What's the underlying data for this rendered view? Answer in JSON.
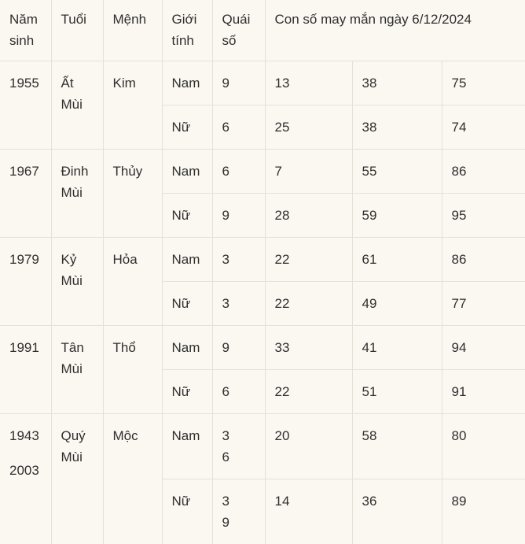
{
  "page": {
    "colors": {
      "background": "#fbf8f2",
      "grid_line": "#e3e1dc",
      "text": "#2f2f2f"
    }
  },
  "table": {
    "columns": [
      "Năm sinh",
      "Tuổi",
      "Mệnh",
      "Giới tính",
      "Quái số"
    ],
    "lucky_header": "Con số may mắn ngày 6/12/2024",
    "groups": [
      {
        "years": [
          "1955"
        ],
        "zodiac": "Ất Mùi",
        "element": "Kim",
        "rows": [
          {
            "gender": "Nam",
            "gua": [
              "9"
            ],
            "numbers": [
              "13",
              "38",
              "75"
            ]
          },
          {
            "gender": "Nữ",
            "gua": [
              "6"
            ],
            "numbers": [
              "25",
              "38",
              "74"
            ]
          }
        ]
      },
      {
        "years": [
          "1967"
        ],
        "zodiac": "Đinh Mùi",
        "element": "Thủy",
        "rows": [
          {
            "gender": "Nam",
            "gua": [
              "6"
            ],
            "numbers": [
              "7",
              "55",
              "86"
            ]
          },
          {
            "gender": "Nữ",
            "gua": [
              "9"
            ],
            "numbers": [
              "28",
              "59",
              "95"
            ]
          }
        ]
      },
      {
        "years": [
          "1979"
        ],
        "zodiac": "Kỷ Mùi",
        "element": "Hỏa",
        "rows": [
          {
            "gender": "Nam",
            "gua": [
              "3"
            ],
            "numbers": [
              "22",
              "61",
              "86"
            ]
          },
          {
            "gender": "Nữ",
            "gua": [
              "3"
            ],
            "numbers": [
              "22",
              "49",
              "77"
            ]
          }
        ]
      },
      {
        "years": [
          "1991"
        ],
        "zodiac": "Tân Mùi",
        "element": "Thổ",
        "rows": [
          {
            "gender": "Nam",
            "gua": [
              "9"
            ],
            "numbers": [
              "33",
              "41",
              "94"
            ]
          },
          {
            "gender": "Nữ",
            "gua": [
              "6"
            ],
            "numbers": [
              "22",
              "51",
              "91"
            ]
          }
        ]
      },
      {
        "years": [
          "1943",
          "2003"
        ],
        "zodiac": "Quý Mùi",
        "element": "Mộc",
        "rows": [
          {
            "gender": "Nam",
            "gua": [
              "3",
              "6"
            ],
            "numbers": [
              "20",
              "58",
              "80"
            ]
          },
          {
            "gender": "Nữ",
            "gua": [
              "3",
              "9"
            ],
            "numbers": [
              "14",
              "36",
              "89"
            ]
          }
        ]
      }
    ]
  }
}
